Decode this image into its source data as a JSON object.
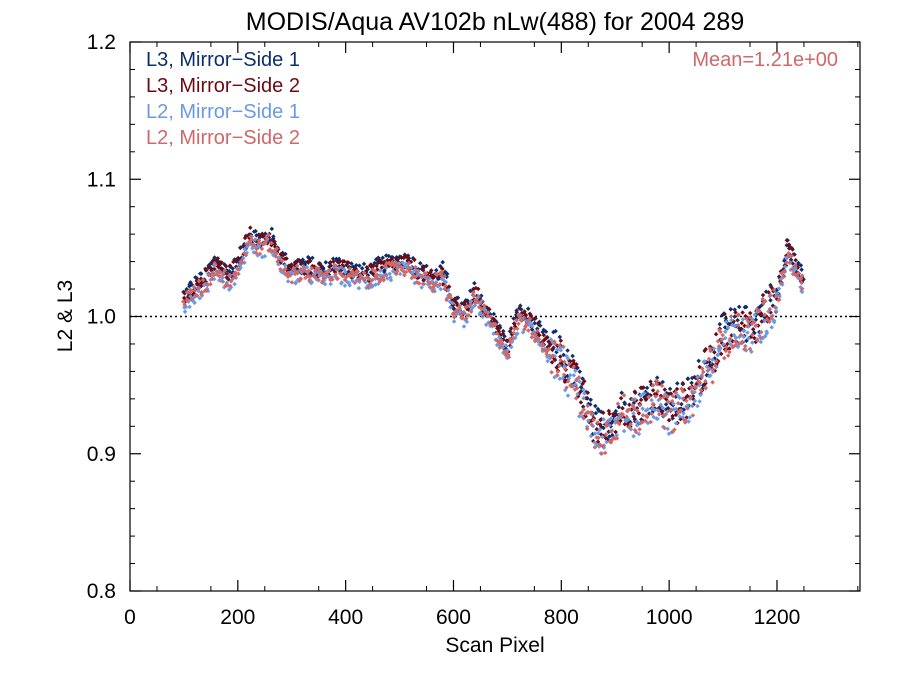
{
  "chart_data": {
    "type": "scatter",
    "title": "MODIS/Aqua AV102b nLw(488) for 2004 289",
    "xlabel": "Scan Pixel",
    "ylabel": "L2 & L3",
    "xlim": [
      0,
      1354
    ],
    "ylim": [
      0.8,
      1.2
    ],
    "x_ticks": [
      0,
      200,
      400,
      600,
      800,
      1000,
      1200
    ],
    "x_tick_labels": [
      "0",
      "200",
      "400",
      "600",
      "800",
      "1000",
      "1200"
    ],
    "y_ticks": [
      0.8,
      0.9,
      1.0,
      1.1,
      1.2
    ],
    "y_tick_labels": [
      "0.8",
      "0.9",
      "1.0",
      "1.1",
      "1.2"
    ],
    "reference_line": {
      "y": 1.0,
      "style": "dotted"
    },
    "annotation": {
      "text": "Mean=1.21e+00",
      "color": "#d06868"
    },
    "legend_position": "top-left",
    "series": [
      {
        "name": "L3, Mirror−Side 1",
        "color": "#0b2f6e",
        "offset": 0.004,
        "x": [
          100,
          120,
          140,
          160,
          180,
          200,
          220,
          240,
          260,
          280,
          300,
          320,
          340,
          360,
          380,
          400,
          420,
          440,
          460,
          480,
          500,
          520,
          540,
          560,
          580,
          600,
          620,
          640,
          660,
          680,
          700,
          720,
          740,
          760,
          780,
          800,
          820,
          840,
          860,
          880,
          900,
          920,
          940,
          960,
          980,
          1000,
          1020,
          1040,
          1060,
          1080,
          1100,
          1120,
          1140,
          1160,
          1180,
          1200,
          1220,
          1240,
          1250
        ],
        "y": [
          1.012,
          1.02,
          1.025,
          1.038,
          1.028,
          1.035,
          1.058,
          1.052,
          1.056,
          1.04,
          1.032,
          1.035,
          1.033,
          1.03,
          1.035,
          1.032,
          1.03,
          1.028,
          1.033,
          1.035,
          1.038,
          1.036,
          1.03,
          1.025,
          1.03,
          1.006,
          1.002,
          1.015,
          1.003,
          0.99,
          0.975,
          1.0,
          0.996,
          0.985,
          0.975,
          0.968,
          0.955,
          0.94,
          0.918,
          0.915,
          0.925,
          0.932,
          0.93,
          0.938,
          0.942,
          0.93,
          0.935,
          0.94,
          0.955,
          0.968,
          0.985,
          0.99,
          0.99,
          0.993,
          1.005,
          1.012,
          1.048,
          1.03,
          1.026
        ]
      },
      {
        "name": "L3, Mirror−Side 2",
        "color": "#6e0a14",
        "offset": 0.002,
        "x": [
          100,
          120,
          140,
          160,
          180,
          200,
          220,
          240,
          260,
          280,
          300,
          320,
          340,
          360,
          380,
          400,
          420,
          440,
          460,
          480,
          500,
          520,
          540,
          560,
          580,
          600,
          620,
          640,
          660,
          680,
          700,
          720,
          740,
          760,
          780,
          800,
          820,
          840,
          860,
          880,
          900,
          920,
          940,
          960,
          980,
          1000,
          1020,
          1040,
          1060,
          1080,
          1100,
          1120,
          1140,
          1160,
          1180,
          1200,
          1220,
          1240,
          1250
        ],
        "y": [
          1.012,
          1.02,
          1.025,
          1.038,
          1.028,
          1.035,
          1.058,
          1.052,
          1.056,
          1.04,
          1.032,
          1.035,
          1.033,
          1.03,
          1.035,
          1.032,
          1.03,
          1.028,
          1.033,
          1.035,
          1.038,
          1.036,
          1.03,
          1.025,
          1.03,
          1.006,
          1.002,
          1.015,
          1.003,
          0.99,
          0.975,
          1.0,
          0.996,
          0.985,
          0.975,
          0.968,
          0.955,
          0.94,
          0.918,
          0.915,
          0.925,
          0.932,
          0.93,
          0.938,
          0.942,
          0.93,
          0.935,
          0.94,
          0.955,
          0.968,
          0.985,
          0.99,
          0.99,
          0.993,
          1.005,
          1.012,
          1.048,
          1.03,
          1.026
        ]
      },
      {
        "name": "L2, Mirror−Side 1",
        "color": "#6a9ae6",
        "offset": -0.004,
        "x": [
          100,
          120,
          140,
          160,
          180,
          200,
          220,
          240,
          260,
          280,
          300,
          320,
          340,
          360,
          380,
          400,
          420,
          440,
          460,
          480,
          500,
          520,
          540,
          560,
          580,
          600,
          620,
          640,
          660,
          680,
          700,
          720,
          740,
          760,
          780,
          800,
          820,
          840,
          860,
          880,
          900,
          920,
          940,
          960,
          980,
          1000,
          1020,
          1040,
          1060,
          1080,
          1100,
          1120,
          1140,
          1160,
          1180,
          1200,
          1220,
          1240,
          1250
        ],
        "y": [
          1.012,
          1.02,
          1.025,
          1.038,
          1.028,
          1.035,
          1.058,
          1.052,
          1.056,
          1.04,
          1.032,
          1.035,
          1.033,
          1.03,
          1.035,
          1.032,
          1.03,
          1.028,
          1.033,
          1.035,
          1.038,
          1.036,
          1.03,
          1.025,
          1.03,
          1.006,
          1.002,
          1.015,
          1.003,
          0.99,
          0.975,
          1.0,
          0.996,
          0.985,
          0.975,
          0.968,
          0.955,
          0.94,
          0.918,
          0.915,
          0.925,
          0.932,
          0.93,
          0.938,
          0.942,
          0.93,
          0.935,
          0.94,
          0.955,
          0.968,
          0.985,
          0.99,
          0.99,
          0.993,
          1.005,
          1.012,
          1.048,
          1.03,
          1.026
        ]
      },
      {
        "name": "L2, Mirror−Side 2",
        "color": "#d06868",
        "offset": -0.002,
        "x": [
          100,
          120,
          140,
          160,
          180,
          200,
          220,
          240,
          260,
          280,
          300,
          320,
          340,
          360,
          380,
          400,
          420,
          440,
          460,
          480,
          500,
          520,
          540,
          560,
          580,
          600,
          620,
          640,
          660,
          680,
          700,
          720,
          740,
          760,
          780,
          800,
          820,
          840,
          860,
          880,
          900,
          920,
          940,
          960,
          980,
          1000,
          1020,
          1040,
          1060,
          1080,
          1100,
          1120,
          1140,
          1160,
          1180,
          1200,
          1220,
          1240,
          1250
        ],
        "y": [
          1.012,
          1.02,
          1.025,
          1.038,
          1.028,
          1.035,
          1.058,
          1.052,
          1.056,
          1.04,
          1.032,
          1.035,
          1.033,
          1.03,
          1.035,
          1.032,
          1.03,
          1.028,
          1.033,
          1.035,
          1.038,
          1.036,
          1.03,
          1.025,
          1.03,
          1.006,
          1.002,
          1.015,
          1.003,
          0.99,
          0.975,
          1.0,
          0.996,
          0.985,
          0.975,
          0.968,
          0.955,
          0.94,
          0.918,
          0.915,
          0.925,
          0.932,
          0.93,
          0.938,
          0.942,
          0.93,
          0.935,
          0.94,
          0.955,
          0.968,
          0.985,
          0.99,
          0.99,
          0.993,
          1.005,
          1.012,
          1.048,
          1.03,
          1.026
        ]
      }
    ]
  }
}
